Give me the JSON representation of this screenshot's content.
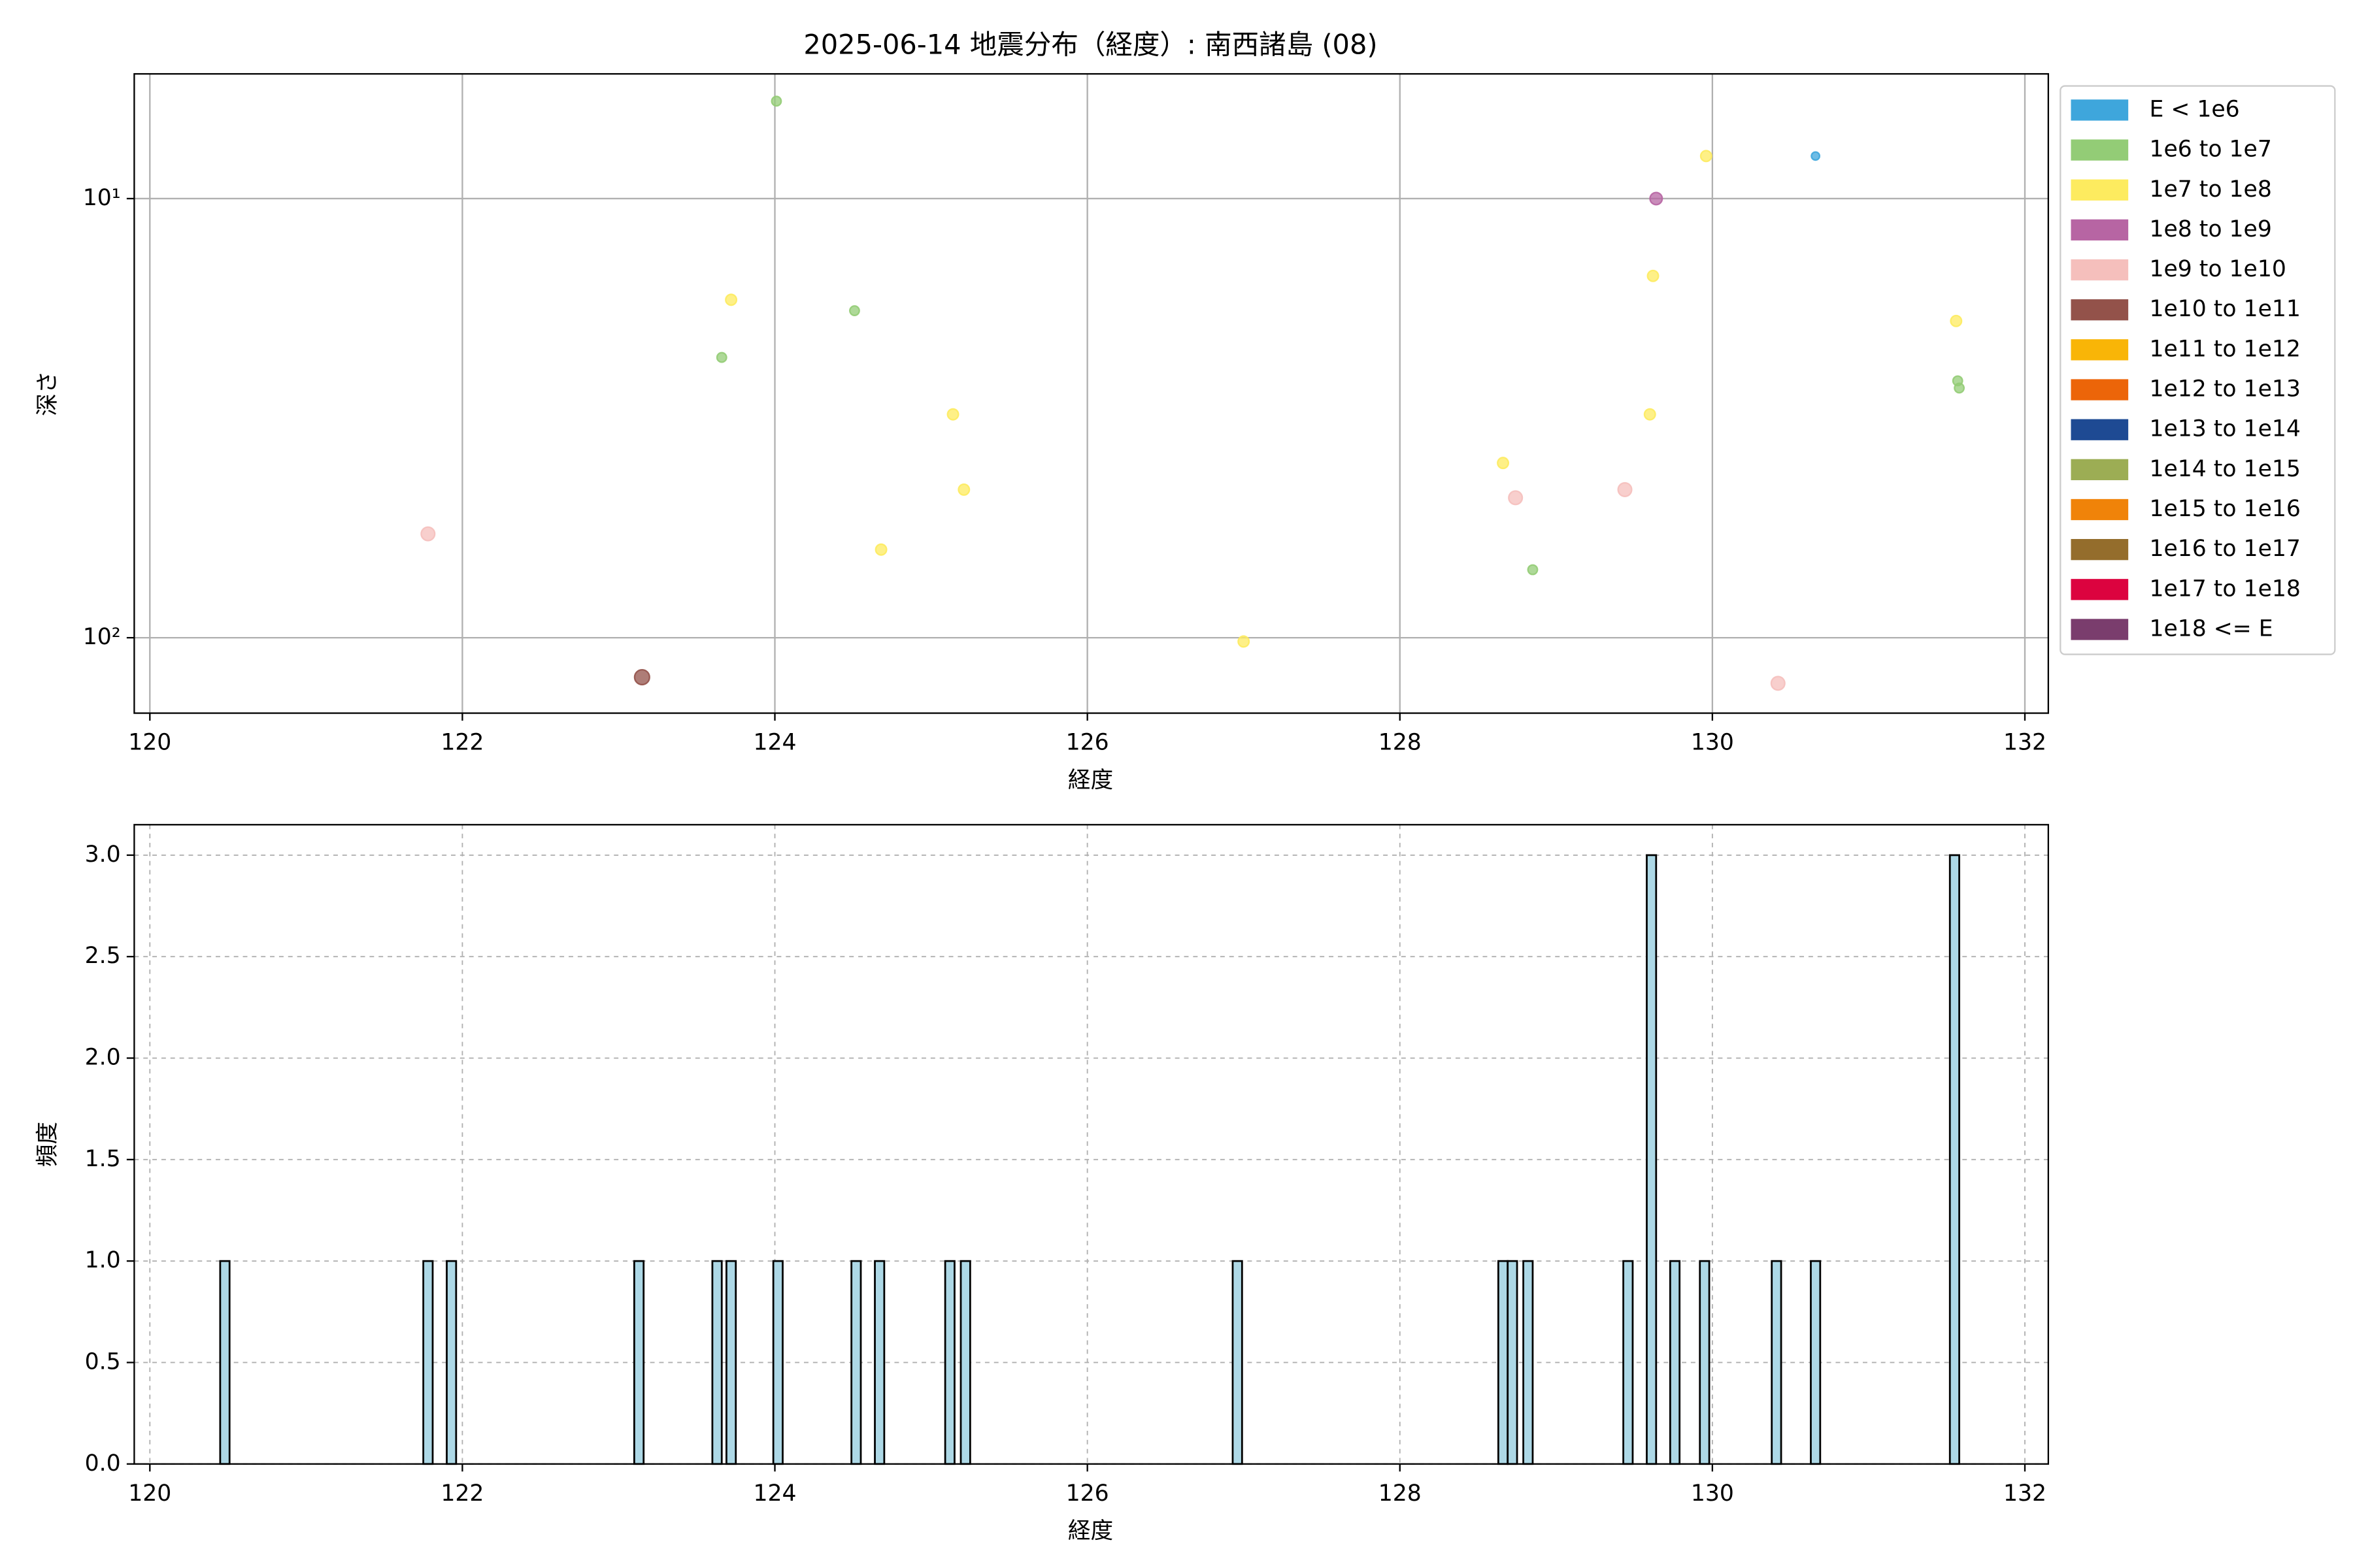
{
  "chart_data": [
    {
      "type": "scatter",
      "title": "2025-06-14 地震分布（経度）: 南西諸島 (08)",
      "x_label": "経度",
      "y_label": "深さ",
      "xlim": [
        119.9,
        132.15
      ],
      "xticks": [
        120,
        122,
        124,
        126,
        128,
        130,
        132
      ],
      "yscale": "log",
      "ylim": [
        148.5,
        5.2
      ],
      "yticks": [
        {
          "value": 10,
          "label": "10¹"
        },
        {
          "value": 100,
          "label": "10²"
        }
      ],
      "grid": true,
      "legend": "outside-upper-right",
      "series": [
        {
          "name": "E < 1e6",
          "color": "#3ea6dc",
          "x": [
            130.66
          ],
          "values": [
            8
          ]
        },
        {
          "name": "1e6 to 1e7",
          "color": "#93cc76",
          "x": [
            123.66,
            124.01,
            124.51,
            128.85,
            131.57,
            131.58
          ],
          "values": [
            23,
            6,
            18,
            70,
            26,
            27
          ]
        },
        {
          "name": "1e7 to 1e8",
          "color": "#fdeb5f",
          "x": [
            123.72,
            124.68,
            125.14,
            125.21,
            127.0,
            128.66,
            129.6,
            129.62,
            129.96,
            131.56
          ],
          "values": [
            17,
            63,
            31,
            46,
            102,
            40,
            31,
            15,
            8,
            19
          ]
        },
        {
          "name": "1e8 to 1e9",
          "color": "#b765a3",
          "x": [
            129.64
          ],
          "values": [
            10
          ]
        },
        {
          "name": "1e9 to 1e10",
          "color": "#f5bfbc",
          "x": [
            121.78,
            128.74,
            129.44,
            130.42
          ],
          "values": [
            58,
            48,
            46,
            127
          ]
        },
        {
          "name": "1e10 to 1e11",
          "color": "#93524a",
          "x": [
            123.15
          ],
          "values": [
            123
          ]
        },
        {
          "name": "1e11 to 1e12",
          "color": "#f9b507",
          "x": [],
          "values": []
        },
        {
          "name": "1e12 to 1e13",
          "color": "#ec6509",
          "x": [],
          "values": []
        },
        {
          "name": "1e13 to 1e14",
          "color": "#1e4a93",
          "x": [],
          "values": []
        },
        {
          "name": "1e14 to 1e15",
          "color": "#9cad54",
          "x": [],
          "values": []
        },
        {
          "name": "1e15 to 1e16",
          "color": "#f08309",
          "x": [],
          "values": []
        },
        {
          "name": "1e16 to 1e17",
          "color": "#946d2c",
          "x": [],
          "values": []
        },
        {
          "name": "1e17 to 1e18",
          "color": "#dc033f",
          "x": [],
          "values": []
        },
        {
          "name": "1e18 <= E",
          "color": "#7a3d6d",
          "x": [],
          "values": []
        }
      ]
    },
    {
      "type": "bar",
      "x_label": "経度",
      "y_label": "頻度",
      "color": "#add8e6",
      "bar_width": 0.06,
      "xlim": [
        119.9,
        132.15
      ],
      "xticks": [
        120,
        122,
        124,
        126,
        128,
        130,
        132
      ],
      "ylim": [
        0,
        3.15
      ],
      "yticks": [
        {
          "value": 0,
          "label": "0.0"
        },
        {
          "value": 0.5,
          "label": "0.5"
        },
        {
          "value": 1,
          "label": "1.0"
        },
        {
          "value": 1.5,
          "label": "1.5"
        },
        {
          "value": 2,
          "label": "2.0"
        },
        {
          "value": 2.5,
          "label": "2.5"
        },
        {
          "value": 3,
          "label": "3.0"
        }
      ],
      "grid": true,
      "x": [
        120.48,
        121.78,
        121.93,
        123.13,
        123.63,
        123.72,
        124.02,
        124.52,
        124.67,
        125.12,
        125.22,
        126.96,
        128.66,
        128.72,
        128.82,
        129.46,
        129.61,
        129.76,
        129.95,
        130.41,
        130.66,
        131.55
      ],
      "values": [
        1,
        1,
        1,
        1,
        1,
        1,
        1,
        1,
        1,
        1,
        1,
        1,
        1,
        1,
        1,
        1,
        3,
        1,
        1,
        1,
        1,
        3
      ]
    }
  ]
}
